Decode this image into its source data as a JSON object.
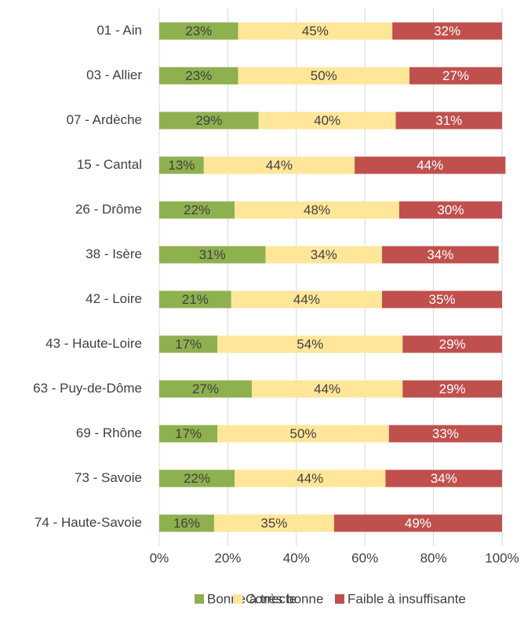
{
  "chart_data": {
    "type": "stacked_barh",
    "categories": [
      "01 - Ain",
      "03 - Allier",
      "07 - Ardèche",
      "15 - Cantal",
      "26 - Drôme",
      "38 - Isère",
      "42 - Loire",
      "43 - Haute-Loire",
      "63 - Puy-de-Dôme",
      "69 - Rhône",
      "73 - Savoie",
      "74 - Haute-Savoie"
    ],
    "series": [
      {
        "name": "Bonne à très bonne",
        "color": "#8fb04f",
        "label_color": "#404040",
        "values": [
          23,
          23,
          29,
          13,
          22,
          31,
          21,
          17,
          27,
          17,
          22,
          16
        ],
        "value_labels": [
          "23%",
          "23%",
          "29%",
          "13%",
          "22%",
          "31%",
          "21%",
          "17%",
          "27%",
          "17%",
          "22%",
          "16%"
        ]
      },
      {
        "name": "Correcte",
        "color": "#ffe699",
        "label_color": "#404040",
        "values": [
          45,
          50,
          40,
          44,
          48,
          34,
          44,
          54,
          44,
          50,
          44,
          35
        ],
        "value_labels": [
          "45%",
          "50%",
          "40%",
          "44%",
          "48%",
          "34%",
          "44%",
          "54%",
          "44%",
          "50%",
          "44%",
          "35%"
        ]
      },
      {
        "name": "Faible à insuffisante",
        "color": "#c0504d",
        "label_color": "#ffffff",
        "values": [
          32,
          27,
          31,
          44,
          30,
          34,
          35,
          29,
          29,
          33,
          34,
          49
        ],
        "value_labels": [
          "32%",
          "27%",
          "31%",
          "44%",
          "30%",
          "34%",
          "35%",
          "29%",
          "29%",
          "33%",
          "34%",
          "49%"
        ]
      }
    ],
    "xlim": [
      0,
      100
    ],
    "xticks": [
      {
        "value": 0,
        "label": "0%"
      },
      {
        "value": 20,
        "label": "20%"
      },
      {
        "value": 40,
        "label": "40%"
      },
      {
        "value": 60,
        "label": "60%"
      },
      {
        "value": 80,
        "label": "80%"
      },
      {
        "value": 100,
        "label": "100%"
      }
    ],
    "grid": true,
    "legend": "bottom"
  }
}
